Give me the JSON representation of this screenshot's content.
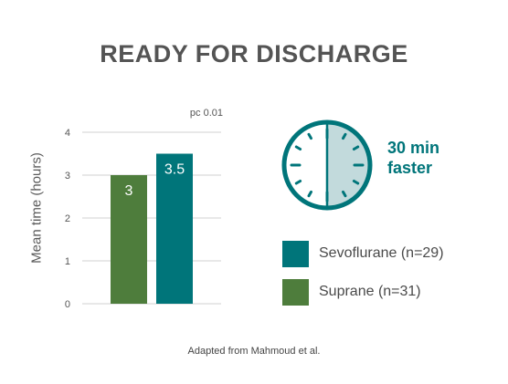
{
  "title": "READY FOR DISCHARGE",
  "note": "pc 0.01",
  "footnote": "Adapted from Mahmoud et al.",
  "clock": {
    "faster_line1": "30 min",
    "faster_line2": "faster"
  },
  "colors": {
    "teal": "#00757a",
    "green": "#4e7d3c",
    "clock_fill": "#c2dadc",
    "title": "#545454"
  },
  "legend": [
    {
      "label": "Sevoflurane (n=29)",
      "color": "#00757a"
    },
    {
      "label": "Suprane (n=31)",
      "color": "#4e7d3c"
    }
  ],
  "chart_data": {
    "type": "bar",
    "title": "READY FOR DISCHARGE",
    "ylabel": "Mean time (hours)",
    "xlabel": "",
    "ylim": [
      0,
      4
    ],
    "yticks": [
      0,
      1,
      2,
      3,
      4
    ],
    "grid": true,
    "categories": [
      "Suprane (n=31)",
      "Sevoflurane (n=29)"
    ],
    "values": [
      3,
      3.5
    ],
    "value_labels": [
      "3",
      "3.5"
    ],
    "colors": [
      "#4e7d3c",
      "#00757a"
    ]
  }
}
